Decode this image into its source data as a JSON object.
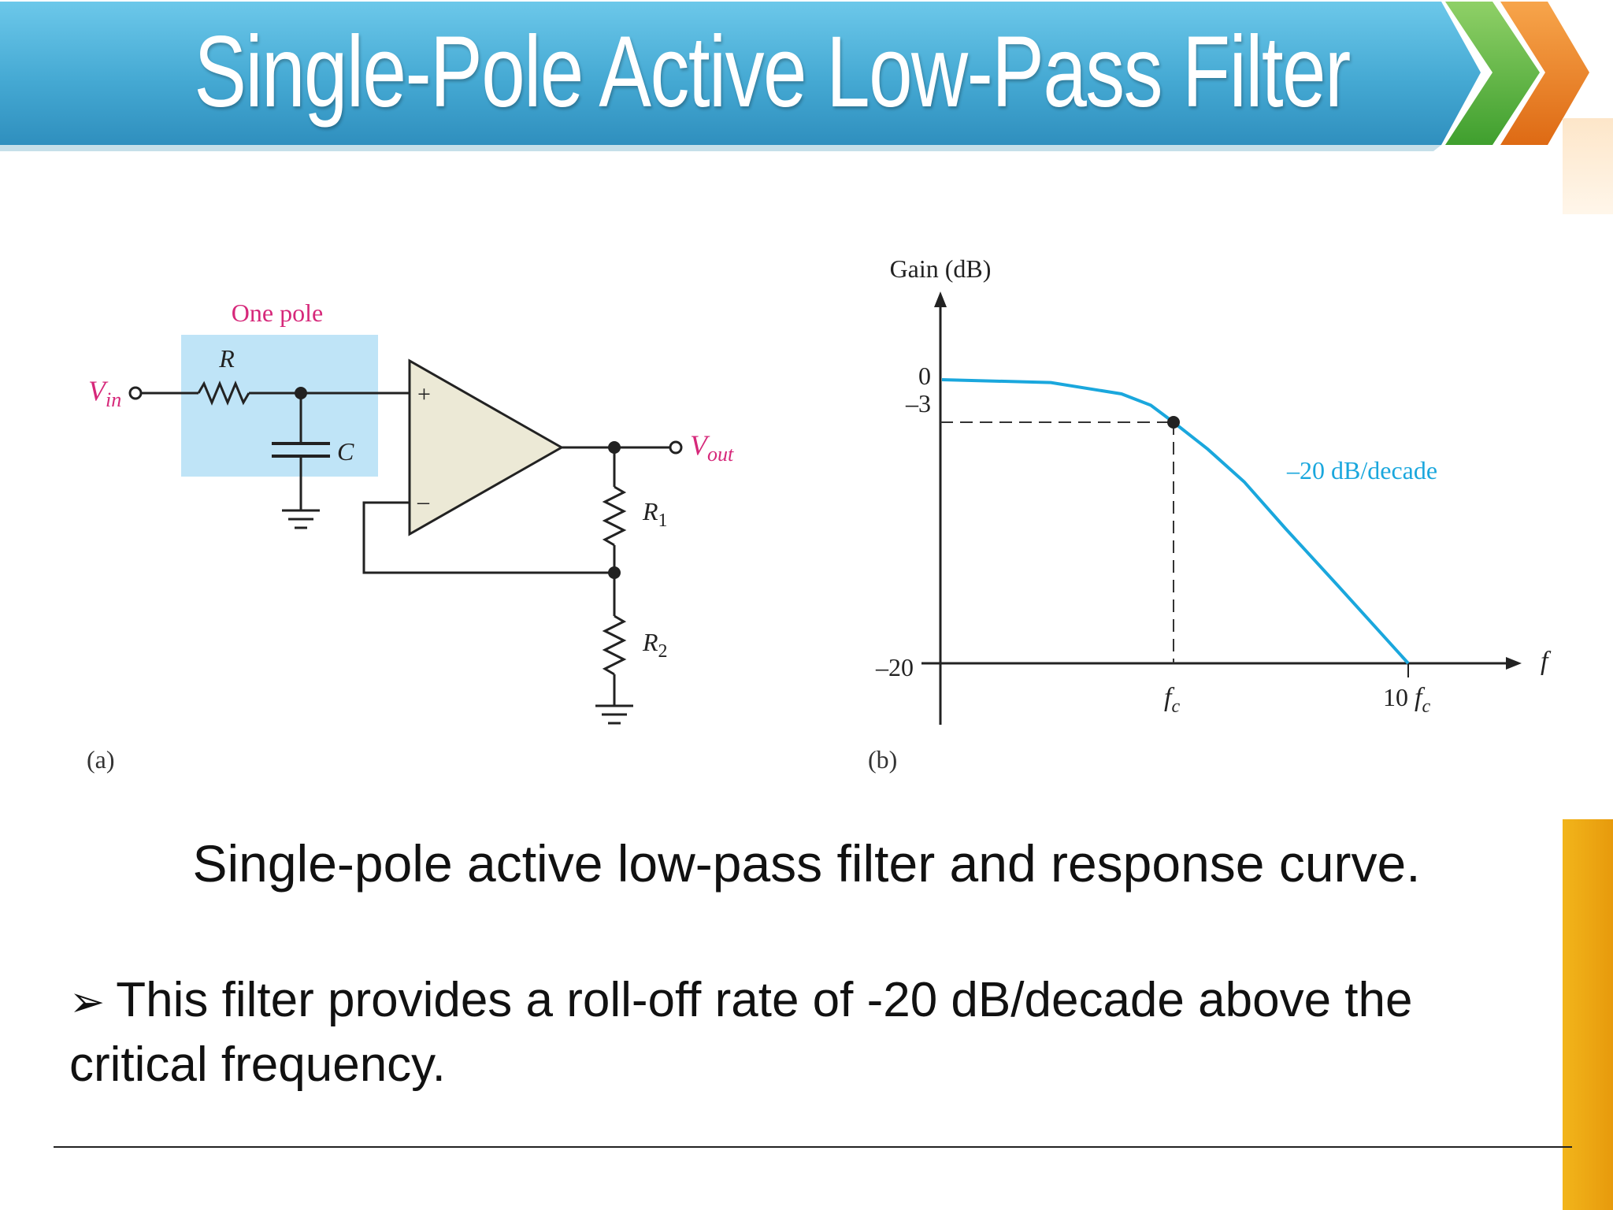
{
  "slide": {
    "title": "Single-Pole Active Low-Pass Filter",
    "caption": "Single-pole active low-pass filter and response curve.",
    "bullet_symbol": "➢",
    "bullet_line1": "This filter provides a roll-off rate of -20 dB/decade above the",
    "bullet_line2": "critical frequency."
  },
  "colors": {
    "banner_blue": "#4fb3d9",
    "chevron_green": "#6cc04a",
    "chevron_orange": "#f08a2c",
    "highlight_box": "#bfe4f7",
    "label_magenta": "#d6287a",
    "opamp_fill": "#ece9d6",
    "curve_blue": "#1aa7dd",
    "accent_gold": "#f2b51b"
  },
  "circuit": {
    "panel_label": "(a)",
    "pole_label": "One pole",
    "r_label": "R",
    "c_label": "C",
    "vin": {
      "main": "V",
      "sub": "in"
    },
    "vout": {
      "main": "V",
      "sub": "out"
    },
    "r1": {
      "main": "R",
      "sub": "1"
    },
    "r2": {
      "main": "R",
      "sub": "2"
    },
    "plus": "+",
    "minus": "–"
  },
  "response": {
    "panel_label": "(b)",
    "y_axis_label": "Gain (dB)",
    "x_axis_label": "f",
    "y_ticks": [
      "0",
      "–3",
      "–20"
    ],
    "fc_label": {
      "main": "f",
      "sub": "c"
    },
    "ten_fc_label": {
      "prefix": "10 ",
      "main": "f",
      "sub": "c"
    },
    "slope_label": "–20 dB/decade"
  },
  "chart_data": {
    "type": "line",
    "title": "",
    "xlabel": "f",
    "ylabel": "Gain (dB)",
    "x_scale": "log",
    "x_ticks": [
      "fc",
      "10 fc"
    ],
    "y_ticks": [
      0,
      -3,
      -20
    ],
    "series": [
      {
        "x": [
          0.1,
          0.3,
          0.6,
          0.8,
          1.0,
          1.4,
          2.0,
          3.0,
          5.0,
          10.0
        ],
        "y": [
          0,
          -0.2,
          -1.0,
          -1.8,
          -3,
          -4.9,
          -7.2,
          -10.5,
          -14.5,
          -20
        ]
      }
    ],
    "annotations": [
      "–20 dB/decade"
    ],
    "marker": {
      "x": 1.0,
      "y": -3
    }
  }
}
